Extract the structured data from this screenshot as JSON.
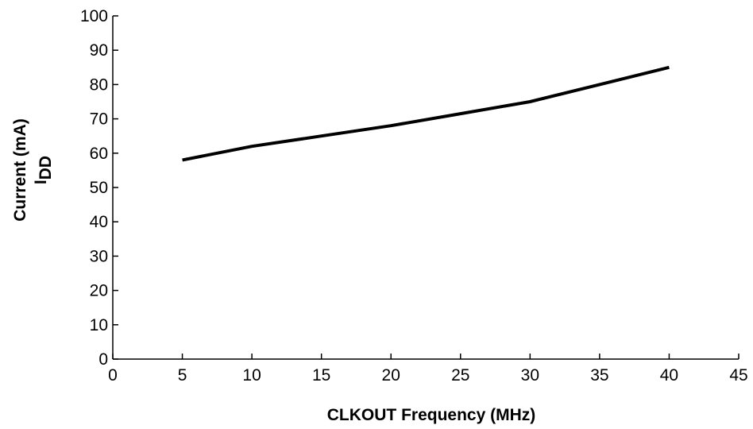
{
  "chart_data": {
    "type": "line",
    "title": "",
    "xlabel": "CLKOUT Frequency (MHz)",
    "ylabel_line1": "Current (mA)",
    "ylabel_line2_main": "I",
    "ylabel_line2_sub": "DD",
    "xlim": [
      0,
      45
    ],
    "ylim": [
      0,
      100
    ],
    "xticks": [
      0,
      5,
      10,
      15,
      20,
      25,
      30,
      35,
      40,
      45
    ],
    "yticks": [
      0,
      10,
      20,
      30,
      40,
      50,
      60,
      70,
      80,
      90,
      100
    ],
    "grid": false,
    "series": [
      {
        "x": [
          5,
          10,
          15,
          20,
          25,
          30,
          35,
          40
        ],
        "y": [
          58,
          62,
          65,
          68,
          71.5,
          75,
          80,
          85
        ]
      }
    ],
    "line_color": "#000000"
  }
}
